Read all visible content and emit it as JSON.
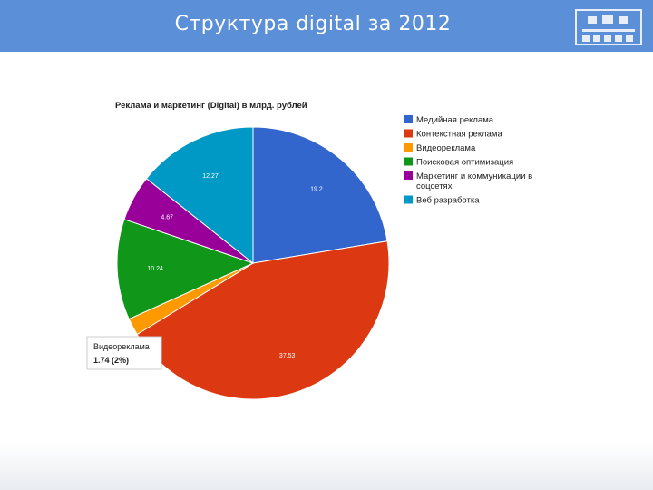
{
  "slide": {
    "title": "Структура digital за 2012",
    "header_color": "#5b8fd8"
  },
  "chart_data": {
    "type": "pie",
    "title": "Реклама и маркетинг (Digital) в млрд. рублей",
    "start_angle_deg": 0,
    "slices": [
      {
        "label": "Медийная реклама",
        "value": 19.2,
        "display": "19.2",
        "color": "#3366cc"
      },
      {
        "label": "Контекстная реклама",
        "value": 37.53,
        "display": "37.53",
        "color": "#dc3912"
      },
      {
        "label": "Видеореклама",
        "value": 1.74,
        "display": "",
        "color": "#ff9900"
      },
      {
        "label": "Поисковая оптимизация",
        "value": 10.24,
        "display": "10.24",
        "color": "#109618"
      },
      {
        "label": "Маркетинг и коммуникации в соцсетях",
        "value": 4.67,
        "display": "4.67",
        "color": "#990099"
      },
      {
        "label": "Веб разработка",
        "value": 12.27,
        "display": "12.27",
        "color": "#0099c6"
      }
    ],
    "legend_lines": [
      [
        "Медийная реклама"
      ],
      [
        "Контекстная реклама"
      ],
      [
        "Видеореклама"
      ],
      [
        "Поисковая оптимизация"
      ],
      [
        "Маркетинг и коммуникации в",
        "соцсетях"
      ],
      [
        "Веб разработка"
      ]
    ],
    "legend_position": "right",
    "tooltip": {
      "label": "Видеореклама",
      "value": "1.74 (2%)",
      "slice_index": 2
    }
  }
}
